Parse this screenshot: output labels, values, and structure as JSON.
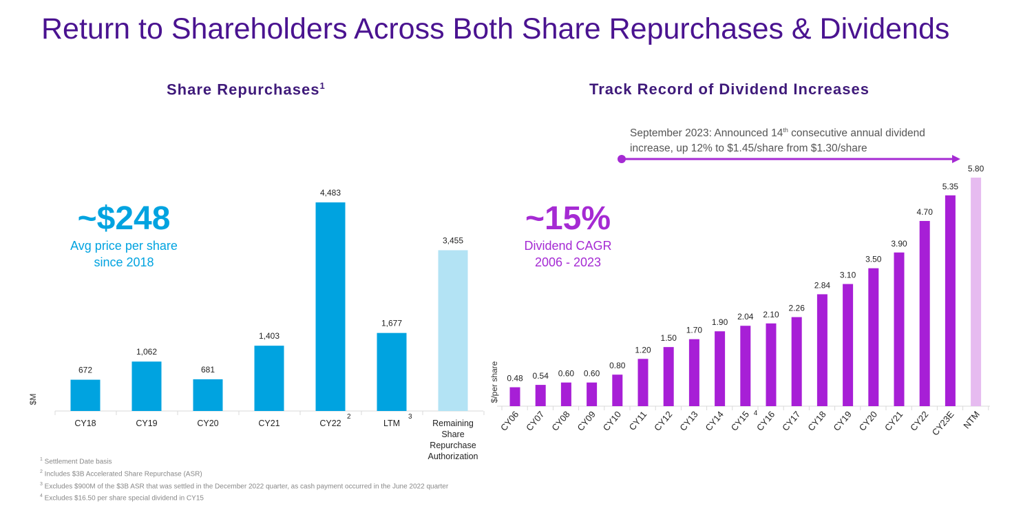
{
  "title": "Return to Shareholders Across Both Share Repurchases & Dividends",
  "left": {
    "heading": "Share Repurchases",
    "heading_sup": "1",
    "kpi_value": "~$248",
    "kpi_label_1": "Avg price per share",
    "kpi_label_2": "since 2018"
  },
  "right": {
    "heading": "Track Record of Dividend Increases",
    "kpi_value": "~15%",
    "kpi_label_1": "Dividend CAGR",
    "kpi_label_2": "2006 - 2023",
    "annotation_pre": "September 2023: Announced 14",
    "annotation_sup": "th",
    "annotation_post": " consecutive annual dividend",
    "annotation_line2": "increase, up 12% to $1.45/share from $1.30/share"
  },
  "footnotes": [
    {
      "n": "1",
      "text": "Settlement Date basis"
    },
    {
      "n": "2",
      "text": "Includes $3B Accelerated Share Repurchase (ASR)"
    },
    {
      "n": "3",
      "text": "Excludes $900M of the $3B ASR that was settled in the December 2022 quarter, as cash payment occurred in the June 2022 quarter"
    },
    {
      "n": "4",
      "text": "Excludes $16.50 per share special dividend in CY15"
    }
  ],
  "chart_data": [
    {
      "type": "bar",
      "title": "Share Repurchases",
      "ylabel": "$M",
      "categories": [
        "CY18",
        "CY19",
        "CY20",
        "CY21",
        "CY22",
        "LTM",
        "Remaining Share Repurchase Authorization"
      ],
      "category_footnotes": [
        "",
        "",
        "",
        "",
        "2",
        "3",
        ""
      ],
      "values": [
        672,
        1062,
        681,
        1403,
        4483,
        1677,
        3455
      ],
      "labels": [
        "672",
        "1,062",
        "681",
        "1,403",
        "4,483",
        "1,677",
        "3,455"
      ],
      "colors": {
        "main": "#00a3e0",
        "highlight": "#b3e3f4"
      },
      "highlight_index": 6,
      "grid": false
    },
    {
      "type": "bar",
      "title": "Track Record of Dividend Increases",
      "ylabel": "$/per share",
      "categories": [
        "CY06",
        "CY07",
        "CY08",
        "CY09",
        "CY10",
        "CY11",
        "CY12",
        "CY13",
        "CY14",
        "CY15",
        "CY16",
        "CY17",
        "CY18",
        "CY19",
        "CY20",
        "CY21",
        "CY22",
        "CY23E",
        "NTM"
      ],
      "category_footnotes": [
        "",
        "",
        "",
        "",
        "",
        "",
        "",
        "",
        "",
        "4",
        "",
        "",
        "",
        "",
        "",
        "",
        "",
        "",
        ""
      ],
      "values": [
        0.48,
        0.54,
        0.6,
        0.6,
        0.8,
        1.2,
        1.5,
        1.7,
        1.9,
        2.04,
        2.1,
        2.26,
        2.84,
        3.1,
        3.5,
        3.9,
        4.7,
        5.35,
        5.8
      ],
      "colors": {
        "main": "#a71fd6",
        "highlight": "#e6bbf0"
      },
      "highlight_index": 18,
      "grid": false
    }
  ]
}
